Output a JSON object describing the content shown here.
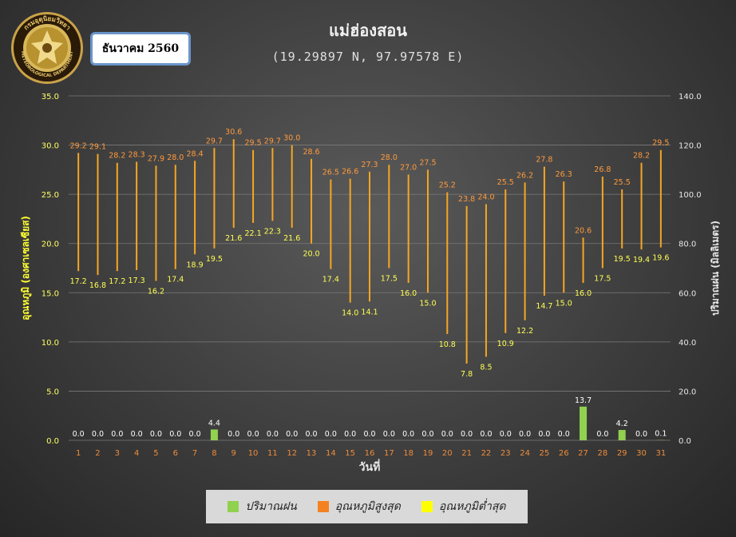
{
  "header": {
    "title": "แม่ฮ่องสอน",
    "subtitle": "(19.29897 N, 97.97578 E)",
    "month": "ธันวาคม 2560",
    "seal_text_top": "กรมอุตุนิยมวิทยา",
    "seal_text_bottom": "METEOROLOGICAL DEPARTMENT"
  },
  "colors": {
    "max_temp": "#f5a623",
    "min_temp": "#ffff00",
    "rain": "#92d050",
    "max_label": "#ff9a3c",
    "min_label": "#ffff55"
  },
  "chart_data": {
    "type": "bar",
    "xlabel": "วันที่",
    "ylabel_left": "อุณหภูมิ (องศาเซลเซียส)",
    "ylabel_right": "ปริมาณฝน (มิลลิเมตร)",
    "ylim_left": [
      0,
      35
    ],
    "ylim_right": [
      0,
      140
    ],
    "yticks_left": [
      "0.0",
      "5.0",
      "10.0",
      "15.0",
      "20.0",
      "25.0",
      "30.0",
      "35.0"
    ],
    "yticks_right": [
      "0.0",
      "20.0",
      "40.0",
      "60.0",
      "80.0",
      "100.0",
      "120.0",
      "140.0"
    ],
    "categories": [
      "1",
      "2",
      "3",
      "4",
      "5",
      "6",
      "7",
      "8",
      "9",
      "10",
      "11",
      "12",
      "13",
      "14",
      "15",
      "16",
      "17",
      "18",
      "19",
      "20",
      "21",
      "22",
      "23",
      "24",
      "25",
      "26",
      "27",
      "28",
      "29",
      "30",
      "31"
    ],
    "series": [
      {
        "name": "ปริมาณฝน",
        "axis": "right",
        "kind": "bar",
        "values": [
          0.0,
          0.0,
          0.0,
          0.0,
          0.0,
          0.0,
          0.0,
          4.4,
          0.0,
          0.0,
          0.0,
          0.0,
          0.0,
          0.0,
          0.0,
          0.0,
          0.0,
          0.0,
          0.0,
          0.0,
          0.0,
          0.0,
          0.0,
          0.0,
          0.0,
          0.0,
          13.7,
          0.0,
          4.2,
          0.0,
          0.1
        ]
      },
      {
        "name": "อุณหภูมิสูงสุด",
        "axis": "left",
        "kind": "range-high",
        "values": [
          29.2,
          29.1,
          28.2,
          28.3,
          27.9,
          28.0,
          28.4,
          29.7,
          30.6,
          29.5,
          29.7,
          30.0,
          28.6,
          26.5,
          26.6,
          27.3,
          28.0,
          27.0,
          27.5,
          25.2,
          23.8,
          24.0,
          25.5,
          26.2,
          27.8,
          26.3,
          20.6,
          26.8,
          25.5,
          28.2,
          29.5
        ]
      },
      {
        "name": "อุณหภูมิต่ำสุด",
        "axis": "left",
        "kind": "range-low",
        "values": [
          17.2,
          16.8,
          17.2,
          17.3,
          16.2,
          17.4,
          18.9,
          19.5,
          21.6,
          22.1,
          22.3,
          21.6,
          20.0,
          17.4,
          14.0,
          14.1,
          17.5,
          16.0,
          15.0,
          10.8,
          7.8,
          8.5,
          10.9,
          12.2,
          14.7,
          15.0,
          16.0,
          17.5,
          19.5,
          19.4,
          19.6
        ]
      }
    ],
    "legend_position": "bottom",
    "grid": true
  }
}
